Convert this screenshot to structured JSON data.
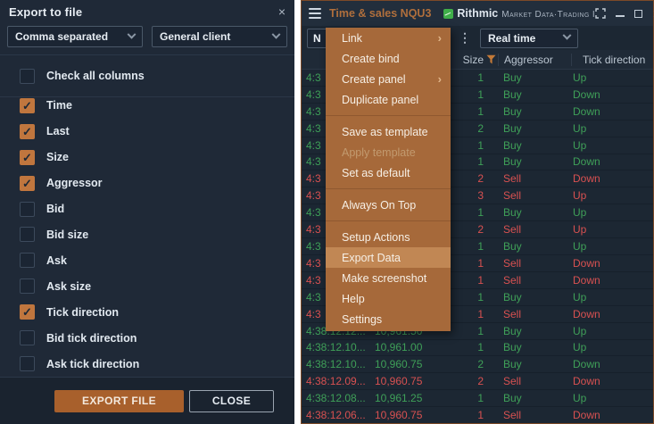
{
  "export_dialog": {
    "title": "Export to file",
    "close_icon": "×",
    "format_select": {
      "value": "Comma separated"
    },
    "client_select": {
      "value": "General client"
    },
    "check_all_label": "Check all columns",
    "check_all_checked": false,
    "columns": [
      {
        "label": "Time",
        "checked": true
      },
      {
        "label": "Last",
        "checked": true
      },
      {
        "label": "Size",
        "checked": true
      },
      {
        "label": "Aggressor",
        "checked": true
      },
      {
        "label": "Bid",
        "checked": false
      },
      {
        "label": "Bid size",
        "checked": false
      },
      {
        "label": "Ask",
        "checked": false
      },
      {
        "label": "Ask size",
        "checked": false
      },
      {
        "label": "Tick direction",
        "checked": true
      },
      {
        "label": "Bid tick direction",
        "checked": false
      },
      {
        "label": "Ask tick direction",
        "checked": false
      }
    ],
    "export_button": "EXPORT FILE",
    "close_button": "CLOSE"
  },
  "ts_window": {
    "title": "Time & sales NQU3",
    "brand": {
      "name": "Rithmic",
      "suffix": "Market Data·Trading I"
    },
    "symbol_box_value": "N",
    "feed_select_value": "Real time",
    "table": {
      "headers": {
        "size": "Size",
        "aggressor": "Aggressor",
        "tick": "Tick direction"
      },
      "rows": [
        {
          "time": "4:3",
          "last": "",
          "size": "1",
          "aggressor": "Buy",
          "tick": "Up"
        },
        {
          "time": "4:3",
          "last": "",
          "size": "1",
          "aggressor": "Buy",
          "tick": "Down"
        },
        {
          "time": "4:3",
          "last": "",
          "size": "1",
          "aggressor": "Buy",
          "tick": "Down"
        },
        {
          "time": "4:3",
          "last": "",
          "size": "2",
          "aggressor": "Buy",
          "tick": "Up"
        },
        {
          "time": "4:3",
          "last": "",
          "size": "1",
          "aggressor": "Buy",
          "tick": "Up"
        },
        {
          "time": "4:3",
          "last": "",
          "size": "1",
          "aggressor": "Buy",
          "tick": "Down"
        },
        {
          "time": "4:3",
          "last": "",
          "size": "2",
          "aggressor": "Sell",
          "tick": "Down"
        },
        {
          "time": "4:3",
          "last": "",
          "size": "3",
          "aggressor": "Sell",
          "tick": "Up"
        },
        {
          "time": "4:3",
          "last": "",
          "size": "1",
          "aggressor": "Buy",
          "tick": "Up"
        },
        {
          "time": "4:3",
          "last": "",
          "size": "2",
          "aggressor": "Sell",
          "tick": "Up"
        },
        {
          "time": "4:3",
          "last": "",
          "size": "1",
          "aggressor": "Buy",
          "tick": "Up"
        },
        {
          "time": "4:3",
          "last": "",
          "size": "1",
          "aggressor": "Sell",
          "tick": "Down"
        },
        {
          "time": "4:3",
          "last": "",
          "size": "1",
          "aggressor": "Sell",
          "tick": "Down"
        },
        {
          "time": "4:3",
          "last": "",
          "size": "1",
          "aggressor": "Buy",
          "tick": "Up"
        },
        {
          "time": "4:3",
          "last": "",
          "size": "1",
          "aggressor": "Sell",
          "tick": "Down"
        },
        {
          "time": "4:38:12.12...",
          "last": "10,961.50",
          "size": "1",
          "aggressor": "Buy",
          "tick": "Up"
        },
        {
          "time": "4:38:12.10...",
          "last": "10,961.00",
          "size": "1",
          "aggressor": "Buy",
          "tick": "Up"
        },
        {
          "time": "4:38:12.10...",
          "last": "10,960.75",
          "size": "2",
          "aggressor": "Buy",
          "tick": "Down"
        },
        {
          "time": "4:38:12.09...",
          "last": "10,960.75",
          "size": "2",
          "aggressor": "Sell",
          "tick": "Down"
        },
        {
          "time": "4:38:12.08...",
          "last": "10,961.25",
          "size": "1",
          "aggressor": "Buy",
          "tick": "Up"
        },
        {
          "time": "4:38:12.06...",
          "last": "10,960.75",
          "size": "1",
          "aggressor": "Sell",
          "tick": "Down"
        }
      ]
    }
  },
  "context_menu": {
    "items": [
      {
        "label": "Link",
        "arrow": true
      },
      {
        "label": "Create bind"
      },
      {
        "label": "Create panel",
        "arrow": true
      },
      {
        "label": "Duplicate panel"
      },
      {
        "separator": true
      },
      {
        "label": "Save as template"
      },
      {
        "label": "Apply template",
        "disabled": true
      },
      {
        "label": "Set as default"
      },
      {
        "separator": true
      },
      {
        "label": "Always On Top"
      },
      {
        "separator": true
      },
      {
        "label": "Setup Actions"
      },
      {
        "label": "Export Data",
        "highlighted": true
      },
      {
        "label": "Make screenshot"
      },
      {
        "label": "Help"
      },
      {
        "label": "Settings"
      }
    ]
  },
  "colors": {
    "accent_orange": "#a8602c",
    "menu_background": "#a6693a",
    "menu_highlight": "#c18754",
    "checkbox_checked": "#c0763e",
    "buy_green": "#3fa058",
    "sell_red": "#d95151",
    "panel_background": "#1f2937",
    "brand_green": "#3fae49"
  }
}
